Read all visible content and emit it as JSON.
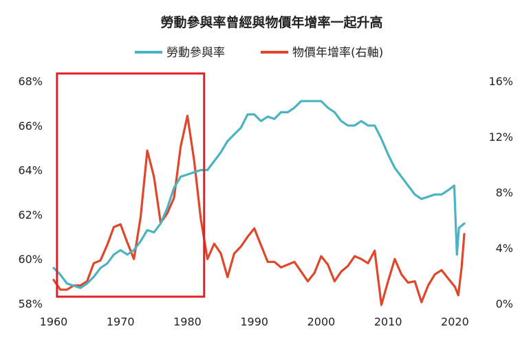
{
  "chart_data": {
    "type": "line",
    "title": "勞動參與率曾經與物價年增率一起升高",
    "xlabel": "",
    "ylabel": "",
    "x_ticks": [
      "1960",
      "1970",
      "1980",
      "1990",
      "2000",
      "2010",
      "2020"
    ],
    "x_range": [
      1960,
      2021.5
    ],
    "y_left_range": [
      58,
      68
    ],
    "y_left_ticks": [
      "58%",
      "60%",
      "62%",
      "64%",
      "66%",
      "68%"
    ],
    "y_right_range": [
      0,
      16
    ],
    "y_right_ticks": [
      "0%",
      "4%",
      "8%",
      "12%",
      "16%"
    ],
    "legend_position": "top-center",
    "highlight_box": {
      "x_start": 1960.5,
      "x_end": 1982.5,
      "color": "#e31e24"
    },
    "series": [
      {
        "name": "勞動參與率",
        "axis": "left",
        "color": "#4ab3c1",
        "x": [
          1960,
          1961,
          1962,
          1963,
          1964,
          1965,
          1966,
          1967,
          1968,
          1969,
          1970,
          1971,
          1972,
          1973,
          1974,
          1975,
          1976,
          1977,
          1978,
          1979,
          1980,
          1981,
          1982,
          1983,
          1984,
          1985,
          1986,
          1987,
          1988,
          1989,
          1990,
          1991,
          1992,
          1993,
          1994,
          1995,
          1996,
          1997,
          1998,
          1999,
          2000,
          2001,
          2002,
          2003,
          2004,
          2005,
          2006,
          2007,
          2008,
          2009,
          2010,
          2011,
          2012,
          2013,
          2014,
          2015,
          2016,
          2017,
          2018,
          2019,
          2019.9,
          2020.3,
          2020.6,
          2021,
          2021.4
        ],
        "values": [
          59.6,
          59.3,
          58.9,
          58.8,
          58.7,
          58.9,
          59.2,
          59.6,
          59.8,
          60.2,
          60.4,
          60.2,
          60.4,
          60.8,
          61.3,
          61.2,
          61.6,
          62.3,
          63.2,
          63.7,
          63.8,
          63.9,
          64.0,
          64.0,
          64.4,
          64.8,
          65.3,
          65.6,
          65.9,
          66.5,
          66.5,
          66.2,
          66.4,
          66.3,
          66.6,
          66.6,
          66.8,
          67.1,
          67.1,
          67.1,
          67.1,
          66.8,
          66.6,
          66.2,
          66.0,
          66.0,
          66.2,
          66.0,
          66.0,
          65.4,
          64.7,
          64.1,
          63.7,
          63.3,
          62.9,
          62.7,
          62.8,
          62.9,
          62.9,
          63.1,
          63.3,
          60.2,
          61.4,
          61.5,
          61.6
        ]
      },
      {
        "name": "物價年增率(右軸)",
        "axis": "right",
        "color": "#e1452a",
        "x": [
          1960,
          1961,
          1962,
          1963,
          1964,
          1965,
          1966,
          1967,
          1968,
          1969,
          1970,
          1971,
          1972,
          1973,
          1974,
          1975,
          1976,
          1977,
          1978,
          1979,
          1980,
          1981,
          1982,
          1983,
          1984,
          1985,
          1986,
          1987,
          1988,
          1989,
          1990,
          1991,
          1992,
          1993,
          1994,
          1995,
          1996,
          1997,
          1998,
          1999,
          2000,
          2001,
          2002,
          2003,
          2004,
          2005,
          2006,
          2007,
          2008,
          2009,
          2010,
          2011,
          2012,
          2013,
          2014,
          2015,
          2016,
          2017,
          2018,
          2019,
          2020,
          2020.5,
          2021,
          2021.4
        ],
        "values": [
          1.7,
          1.0,
          1.0,
          1.3,
          1.3,
          1.6,
          2.9,
          3.1,
          4.2,
          5.5,
          5.7,
          4.4,
          3.2,
          6.2,
          11.0,
          9.1,
          5.8,
          6.5,
          7.6,
          11.3,
          13.5,
          10.3,
          6.1,
          3.2,
          4.3,
          3.6,
          1.9,
          3.6,
          4.1,
          4.8,
          5.4,
          4.2,
          3.0,
          3.0,
          2.6,
          2.8,
          3.0,
          2.3,
          1.6,
          2.2,
          3.4,
          2.8,
          1.6,
          2.3,
          2.7,
          3.4,
          3.2,
          2.9,
          3.8,
          -0.4,
          1.6,
          3.2,
          2.1,
          1.5,
          1.6,
          0.1,
          1.3,
          2.1,
          2.4,
          1.8,
          1.2,
          0.6,
          2.6,
          5.0
        ]
      }
    ]
  }
}
